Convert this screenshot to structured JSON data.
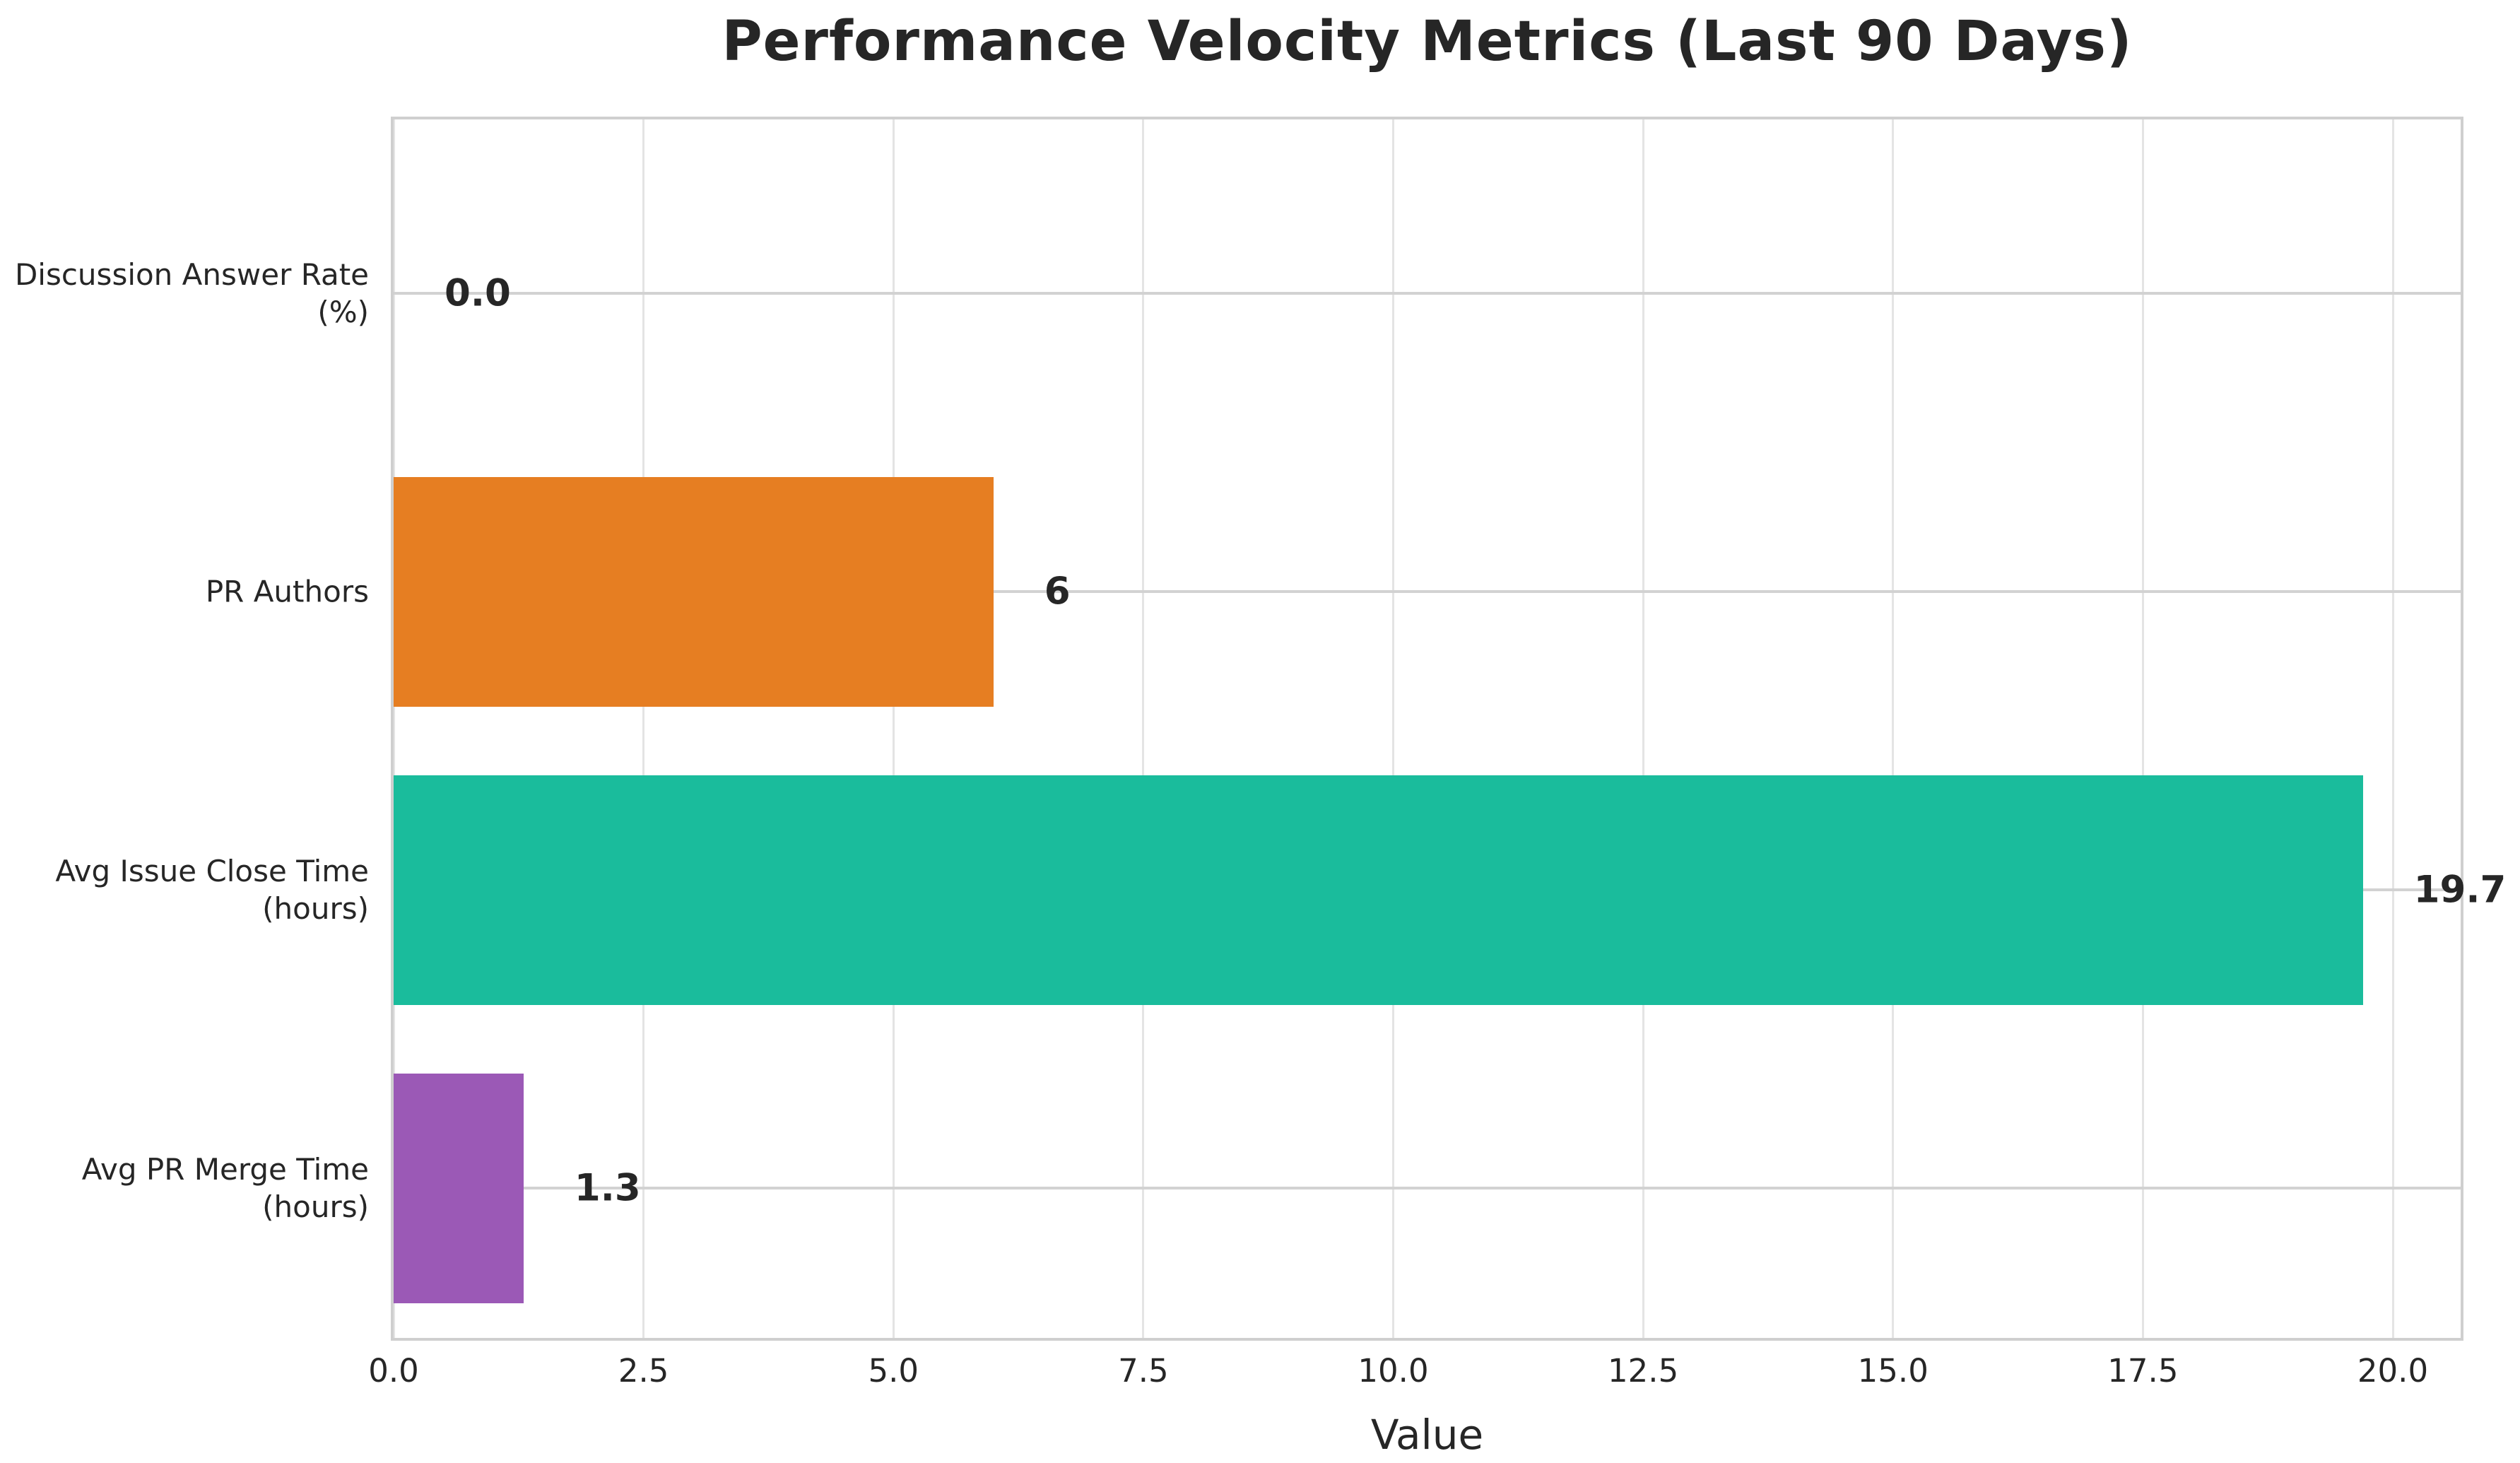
{
  "chart_data": {
    "type": "bar",
    "orientation": "horizontal",
    "title": "Performance Velocity Metrics (Last 90 Days)",
    "xlabel": "Value",
    "ylabel": "",
    "categories": [
      "Discussion Answer Rate (%)",
      "PR Authors",
      "Avg Issue Close Time (hours)",
      "Avg PR Merge Time (hours)"
    ],
    "category_label_lines": [
      [
        "Discussion Answer Rate",
        "(%)"
      ],
      [
        "PR Authors"
      ],
      [
        "Avg Issue Close Time",
        "(hours)"
      ],
      [
        "Avg PR Merge Time",
        "(hours)"
      ]
    ],
    "values": [
      0.0,
      6,
      19.7,
      1.3
    ],
    "value_labels": [
      "0.0",
      "6",
      "19.7",
      "1.3"
    ],
    "bar_colors": [
      null,
      "#e67e22",
      "#1abc9c",
      "#9b59b6"
    ],
    "xlim": [
      0,
      20.68
    ],
    "xticks": [
      0,
      2.5,
      5,
      7.5,
      10,
      12.5,
      15,
      17.5,
      20
    ],
    "xtick_labels": [
      "0.0",
      "2.5",
      "5.0",
      "7.5",
      "10.0",
      "12.5",
      "15.0",
      "17.5",
      "20.0"
    ],
    "grid": true,
    "legend": null
  },
  "colors": {
    "background": "#ffffff",
    "text": "#262626",
    "spine": "#cfcfcf",
    "grid_vertical": "#e4e4e4",
    "grid_horizontal": "#d2d2d2",
    "bar_orange": "#e67e22",
    "bar_teal": "#1abc9c",
    "bar_purple": "#9b59b6"
  }
}
